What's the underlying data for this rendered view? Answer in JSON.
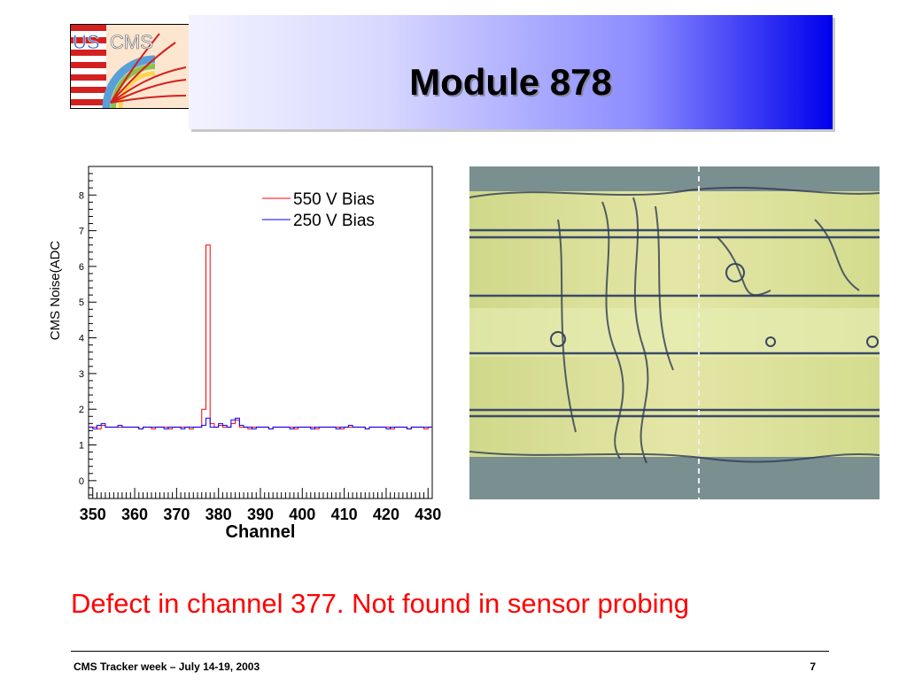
{
  "slide": {
    "title": "Module 878",
    "caption": "Defect in channel 377. Not found in sensor probing",
    "footer_left": "CMS Tracker week – July 14-19, 2003",
    "page_number": "7"
  },
  "logo": {
    "us": "US",
    "cms": "CMS"
  },
  "colors": {
    "caption": "#ff0000",
    "series_550": "#ff0000",
    "series_250": "#0000ff",
    "title_gradient_end": "#0000ee"
  },
  "chart_data": {
    "type": "line",
    "xlabel": "Channel",
    "ylabel": "CMS Noise(ADC",
    "xlim": [
      349,
      431
    ],
    "ylim": [
      -0.5,
      8.8
    ],
    "x_ticks": [
      350,
      360,
      370,
      380,
      390,
      400,
      410,
      420,
      430
    ],
    "y_ticks": [
      0,
      1,
      2,
      3,
      4,
      5,
      6,
      7,
      8
    ],
    "legend_position": "top-right",
    "grid": false,
    "series": [
      {
        "name": "550 V Bias",
        "color": "#ff0000",
        "x": [
          349,
          350,
          351,
          352,
          353,
          354,
          355,
          356,
          357,
          358,
          359,
          360,
          361,
          362,
          363,
          364,
          365,
          366,
          367,
          368,
          369,
          370,
          371,
          372,
          373,
          374,
          375,
          376,
          377,
          378,
          379,
          380,
          381,
          382,
          383,
          384,
          385,
          386,
          387,
          388,
          389,
          390,
          391,
          392,
          393,
          394,
          395,
          396,
          397,
          398,
          399,
          400,
          401,
          402,
          403,
          404,
          405,
          406,
          407,
          408,
          409,
          410,
          411,
          412,
          413,
          414,
          415,
          416,
          417,
          418,
          419,
          420,
          421,
          422,
          423,
          424,
          425,
          426,
          427,
          428,
          429,
          430
        ],
        "values": [
          1.5,
          1.5,
          1.45,
          1.55,
          1.5,
          1.5,
          1.5,
          1.5,
          1.5,
          1.5,
          1.5,
          1.5,
          1.45,
          1.5,
          1.5,
          1.45,
          1.5,
          1.5,
          1.5,
          1.45,
          1.5,
          1.5,
          1.5,
          1.5,
          1.45,
          1.5,
          1.5,
          2.0,
          6.6,
          1.6,
          1.5,
          1.55,
          1.5,
          1.5,
          1.6,
          1.7,
          1.5,
          1.5,
          1.45,
          1.5,
          1.5,
          1.5,
          1.5,
          1.45,
          1.5,
          1.5,
          1.5,
          1.5,
          1.5,
          1.45,
          1.5,
          1.5,
          1.5,
          1.5,
          1.45,
          1.5,
          1.5,
          1.5,
          1.5,
          1.5,
          1.45,
          1.5,
          1.5,
          1.5,
          1.5,
          1.5,
          1.45,
          1.5,
          1.5,
          1.5,
          1.5,
          1.5,
          1.45,
          1.5,
          1.5,
          1.5,
          1.45,
          1.5,
          1.5,
          1.5,
          1.45,
          1.5
        ]
      },
      {
        "name": "250 V Bias",
        "color": "#0000ff",
        "x": [
          349,
          350,
          351,
          352,
          353,
          354,
          355,
          356,
          357,
          358,
          359,
          360,
          361,
          362,
          363,
          364,
          365,
          366,
          367,
          368,
          369,
          370,
          371,
          372,
          373,
          374,
          375,
          376,
          377,
          378,
          379,
          380,
          381,
          382,
          383,
          384,
          385,
          386,
          387,
          388,
          389,
          390,
          391,
          392,
          393,
          394,
          395,
          396,
          397,
          398,
          399,
          400,
          401,
          402,
          403,
          404,
          405,
          406,
          407,
          408,
          409,
          410,
          411,
          412,
          413,
          414,
          415,
          416,
          417,
          418,
          419,
          420,
          421,
          422,
          423,
          424,
          425,
          426,
          427,
          428,
          429,
          430
        ],
        "values": [
          1.5,
          1.45,
          1.55,
          1.6,
          1.5,
          1.5,
          1.5,
          1.55,
          1.5,
          1.5,
          1.5,
          1.5,
          1.45,
          1.5,
          1.5,
          1.5,
          1.5,
          1.5,
          1.45,
          1.5,
          1.5,
          1.5,
          1.45,
          1.5,
          1.5,
          1.5,
          1.5,
          1.55,
          1.75,
          1.5,
          1.5,
          1.6,
          1.55,
          1.5,
          1.7,
          1.75,
          1.55,
          1.5,
          1.5,
          1.45,
          1.5,
          1.5,
          1.5,
          1.45,
          1.5,
          1.5,
          1.5,
          1.5,
          1.45,
          1.5,
          1.5,
          1.5,
          1.5,
          1.45,
          1.5,
          1.5,
          1.5,
          1.5,
          1.5,
          1.45,
          1.5,
          1.5,
          1.55,
          1.5,
          1.5,
          1.5,
          1.45,
          1.5,
          1.5,
          1.5,
          1.5,
          1.45,
          1.5,
          1.5,
          1.5,
          1.5,
          1.45,
          1.5,
          1.5,
          1.5,
          1.5,
          1.5
        ]
      }
    ]
  }
}
